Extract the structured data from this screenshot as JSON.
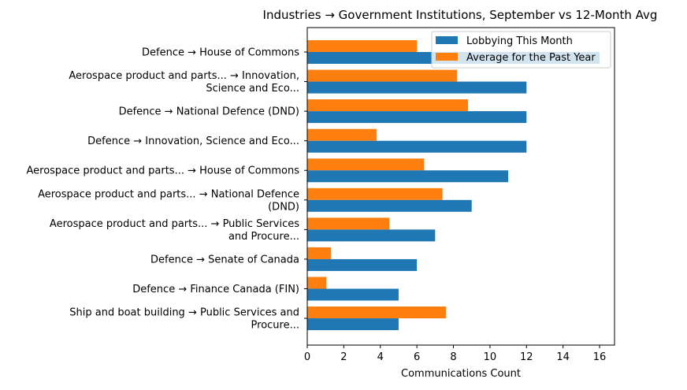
{
  "chart_data": {
    "type": "bar",
    "orientation": "horizontal",
    "title": "Industries → Government Institutions, September vs 12-Month Avg",
    "xlabel": "Communications Count",
    "ylabel": "",
    "xlim": [
      0,
      16.8
    ],
    "xticks": [
      "0",
      "2",
      "4",
      "6",
      "8",
      "10",
      "12",
      "14",
      "16"
    ],
    "grid": false,
    "legend_position": "top-right",
    "categories": [
      [
        "Defence → House of Commons"
      ],
      [
        "Aerospace product and parts... → Innovation,",
        "Science and Eco..."
      ],
      [
        "Defence → National Defence (DND)"
      ],
      [
        "Defence → Innovation, Science and Eco..."
      ],
      [
        "Aerospace product and parts... → House of Commons"
      ],
      [
        "Aerospace product and parts... → National Defence",
        "(DND)"
      ],
      [
        "Aerospace product and parts... → Public Services",
        "and Procure..."
      ],
      [
        "Defence → Senate of Canada"
      ],
      [
        "Defence → Finance Canada (FIN)"
      ],
      [
        "Ship and boat building → Public Services and",
        "Procure..."
      ]
    ],
    "series": [
      {
        "name": "Lobbying This Month",
        "color": "#1f77b4",
        "values": [
          16,
          12,
          12,
          12,
          11,
          9,
          7,
          6,
          5,
          5
        ]
      },
      {
        "name": "Average for the Past Year",
        "color": "#ff7f0e",
        "values": [
          6.0,
          8.2,
          8.8,
          3.8,
          6.4,
          7.4,
          4.5,
          1.3,
          1.05,
          7.6
        ]
      }
    ]
  }
}
